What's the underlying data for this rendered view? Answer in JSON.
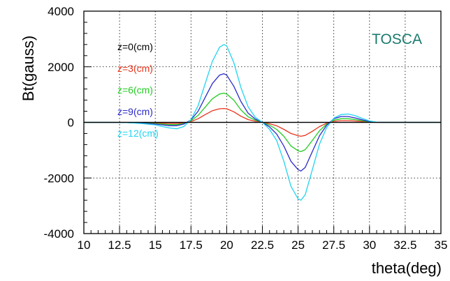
{
  "chart_data": {
    "type": "line",
    "title": "",
    "xlabel": "theta(deg)",
    "ylabel": "Bt(gauss)",
    "xlim": [
      10,
      35
    ],
    "ylim": [
      -4000,
      4000
    ],
    "grid": true,
    "x_ticks": [
      10,
      12.5,
      15,
      17.5,
      20,
      22.5,
      25,
      27.5,
      30,
      32.5,
      35
    ],
    "x_tick_labels": [
      "10",
      "12.5",
      "15",
      "17.5",
      "20",
      "22.5",
      "25",
      "27.5",
      "30",
      "32.5",
      "35"
    ],
    "y_ticks": [
      -4000,
      -2000,
      0,
      2000,
      4000
    ],
    "y_tick_labels": [
      "-4000",
      "-2000",
      "0",
      "2000",
      "4000"
    ],
    "annotation": "TOSCA",
    "annotation_color": "#1a7a6e",
    "legend_position": "left",
    "x": [
      10,
      12,
      13,
      14,
      15,
      15.5,
      16,
      16.5,
      17,
      17.5,
      18,
      18.5,
      19,
      19.5,
      19.8,
      20,
      20.5,
      21,
      21.5,
      22,
      22.5,
      23,
      23.5,
      24,
      24.5,
      25,
      25.2,
      25.5,
      26,
      26.5,
      27,
      27.5,
      28,
      28.5,
      29,
      29.5,
      30,
      30.5,
      31,
      32,
      35
    ],
    "series": [
      {
        "name": "z=0(cm)",
        "color": "#000000",
        "values": [
          0,
          0,
          0,
          0,
          0,
          0,
          0,
          0,
          0,
          0,
          0,
          0,
          0,
          0,
          0,
          0,
          0,
          0,
          0,
          0,
          0,
          0,
          0,
          0,
          0,
          0,
          0,
          0,
          0,
          0,
          0,
          0,
          0,
          0,
          0,
          0,
          0,
          0,
          0,
          0,
          0
        ]
      },
      {
        "name": "z=3(cm)",
        "color": "#e8341c",
        "values": [
          0,
          0,
          0,
          -10,
          -20,
          -30,
          -40,
          -40,
          -20,
          30,
          130,
          280,
          420,
          490,
          500,
          490,
          380,
          220,
          100,
          40,
          0,
          -50,
          -120,
          -250,
          -400,
          -480,
          -500,
          -470,
          -320,
          -150,
          -30,
          40,
          60,
          60,
          50,
          30,
          10,
          0,
          0,
          0,
          0
        ]
      },
      {
        "name": "z=6(cm)",
        "color": "#22cc22",
        "values": [
          0,
          0,
          -5,
          -20,
          -40,
          -60,
          -80,
          -80,
          -40,
          60,
          250,
          550,
          850,
          1020,
          1050,
          1020,
          800,
          450,
          200,
          80,
          0,
          -100,
          -250,
          -500,
          -850,
          -1020,
          -1050,
          -980,
          -650,
          -300,
          -60,
          80,
          130,
          130,
          100,
          60,
          20,
          5,
          0,
          0,
          0
        ]
      },
      {
        "name": "z=9(cm)",
        "color": "#2a2ac8",
        "values": [
          0,
          0,
          -10,
          -30,
          -60,
          -90,
          -120,
          -120,
          -60,
          90,
          400,
          900,
          1400,
          1700,
          1750,
          1700,
          1300,
          750,
          330,
          120,
          0,
          -160,
          -420,
          -850,
          -1400,
          -1700,
          -1750,
          -1620,
          -1050,
          -480,
          -100,
          130,
          210,
          210,
          160,
          90,
          30,
          5,
          0,
          0,
          0
        ]
      },
      {
        "name": "z=12(cm)",
        "color": "#22d4f0",
        "values": [
          0,
          0,
          -10,
          -40,
          -90,
          -150,
          -200,
          -230,
          -150,
          100,
          600,
          1400,
          2200,
          2700,
          2800,
          2750,
          2150,
          1250,
          560,
          180,
          0,
          -250,
          -650,
          -1400,
          -2300,
          -2750,
          -2800,
          -2600,
          -1700,
          -780,
          -180,
          150,
          280,
          300,
          240,
          140,
          50,
          10,
          0,
          0,
          0
        ]
      }
    ]
  }
}
